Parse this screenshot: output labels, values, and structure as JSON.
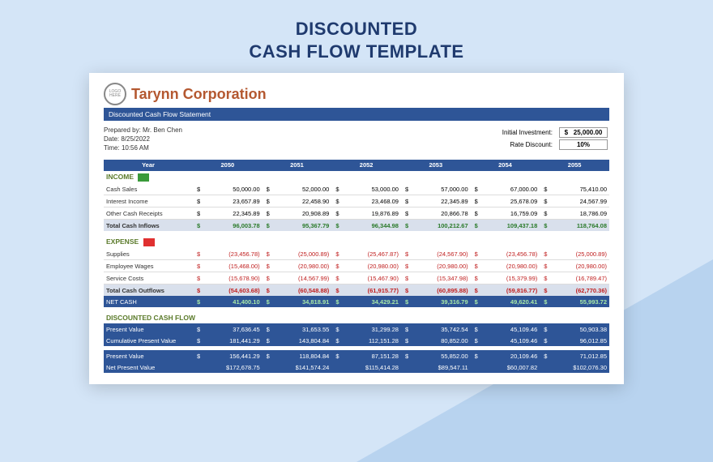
{
  "page": {
    "title_line1": "DISCOUNTED",
    "title_line2": "CASH FLOW TEMPLATE"
  },
  "company": {
    "logo_text": "LOGO\nHERE",
    "name": "Tarynn Corporation"
  },
  "banner": "Discounted Cash Flow Statement",
  "meta": {
    "prepared_by_label": "Prepared by:",
    "prepared_by": "Mr. Ben Chen",
    "date_label": "Date:",
    "date": "8/25/2022",
    "time_label": "Time:",
    "time": "10:56 AM",
    "initial_inv_label": "Initial Investment:",
    "initial_inv": "25,000.00",
    "rate_label": "Rate Discount:",
    "rate": "10%"
  },
  "years_header": "Year",
  "years": [
    "2050",
    "2051",
    "2052",
    "2053",
    "2054",
    "2055"
  ],
  "income": {
    "label": "INCOME",
    "rows": [
      {
        "label": "Cash Sales",
        "vals": [
          "50,000.00",
          "52,000.00",
          "53,000.00",
          "57,000.00",
          "67,000.00",
          "75,410.00"
        ]
      },
      {
        "label": "Interest Income",
        "vals": [
          "23,657.89",
          "22,458.90",
          "23,468.09",
          "22,345.89",
          "25,678.09",
          "24,567.99"
        ]
      },
      {
        "label": "Other Cash Receipts",
        "vals": [
          "22,345.89",
          "20,908.89",
          "19,876.89",
          "20,866.78",
          "16,759.09",
          "18,786.09"
        ]
      }
    ],
    "total": {
      "label": "Total Cash Inflows",
      "vals": [
        "96,003.78",
        "95,367.79",
        "96,344.98",
        "100,212.67",
        "109,437.18",
        "118,764.08"
      ]
    }
  },
  "expense": {
    "label": "EXPENSE",
    "rows": [
      {
        "label": "Supplies",
        "vals": [
          "(23,456.78)",
          "(25,000.89)",
          "(25,467.87)",
          "(24,567.90)",
          "(23,456.78)",
          "(25,000.89)"
        ]
      },
      {
        "label": "Employee Wages",
        "vals": [
          "(15,468.00)",
          "(20,980.00)",
          "(20,980.00)",
          "(20,980.00)",
          "(20,980.00)",
          "(20,980.00)"
        ]
      },
      {
        "label": "Service Costs",
        "vals": [
          "(15,678.90)",
          "(14,567.99)",
          "(15,467.90)",
          "(15,347.98)",
          "(15,379.99)",
          "(16,789.47)"
        ]
      }
    ],
    "total": {
      "label": "Total Cash Outflows",
      "vals": [
        "(54,603.68)",
        "(60,548.88)",
        "(61,915.77)",
        "(60,895.88)",
        "(59,816.77)",
        "(62,770.36)"
      ]
    },
    "net": {
      "label": "NET CASH",
      "vals": [
        "41,400.10",
        "34,818.91",
        "34,429.21",
        "39,316.79",
        "49,620.41",
        "55,993.72"
      ]
    }
  },
  "dcf": {
    "label": "DISCOUNTED CASH FLOW",
    "rows": [
      {
        "label": "Present Value",
        "vals": [
          "37,636.45",
          "31,653.55",
          "31,299.28",
          "35,742.54",
          "45,109.46",
          "50,903.38"
        ]
      },
      {
        "label": "Cumulative Present Value",
        "vals": [
          "181,441.29",
          "143,804.84",
          "112,151.28",
          "80,852.00",
          "45,109.46",
          "96,012.85"
        ]
      }
    ],
    "bottom": [
      {
        "label": "Present Value",
        "vals": [
          "156,441.29",
          "118,804.84",
          "87,151.28",
          "55,852.00",
          "20,109.46",
          "71,012.85"
        ]
      },
      {
        "label": "Net Present Value",
        "vals": [
          "$172,678.75",
          "$141,574.24",
          "$115,414.28",
          "$89,547.11",
          "$60,007.82",
          "$102,076.30"
        ]
      }
    ]
  },
  "colors": {
    "brand_blue": "#2e5597",
    "company_orange": "#b45830",
    "section_green": "#5a7a2a",
    "background": "#d4e5f7"
  }
}
